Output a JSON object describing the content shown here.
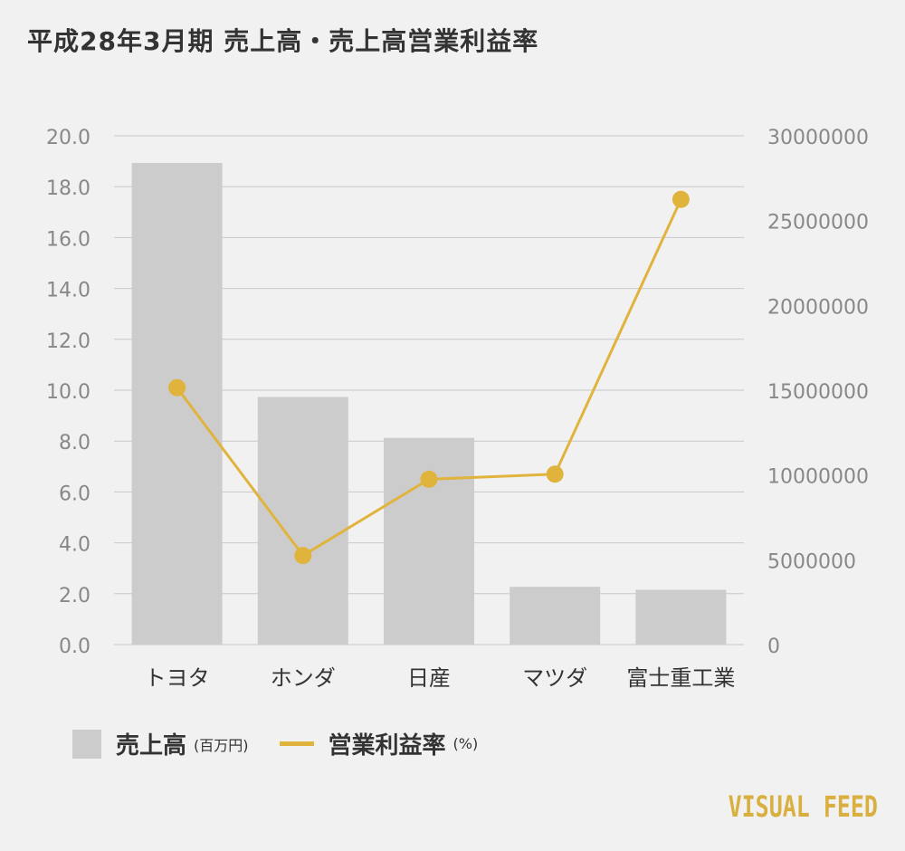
{
  "title": "平成28年3月期 売上高・売上高営業利益率",
  "chart_data": {
    "type": "bar",
    "categories": [
      "トヨタ",
      "ホンダ",
      "日産",
      "マツダ",
      "富士重工業"
    ],
    "series": [
      {
        "name": "売上高",
        "unit": "(百万円)",
        "type": "bar",
        "axis": "right",
        "values": [
          28403118,
          14601151,
          12189519,
          3406603,
          3232258
        ],
        "color": "#cccccc"
      },
      {
        "name": "営業利益率",
        "unit": "(%)",
        "type": "line",
        "axis": "left",
        "values": [
          10.1,
          3.5,
          6.5,
          6.7,
          17.5
        ],
        "color": "#e0b43c"
      }
    ],
    "y_left": {
      "min": 0,
      "max": 20,
      "ticks": [
        "0.0",
        "2.0",
        "4.0",
        "6.0",
        "8.0",
        "10.0",
        "12.0",
        "14.0",
        "16.0",
        "18.0",
        "20.0"
      ]
    },
    "y_right": {
      "min": 0,
      "max": 30000000,
      "ticks": [
        "0",
        "5000000",
        "10000000",
        "15000000",
        "20000000",
        "25000000",
        "30000000"
      ]
    },
    "grid": true,
    "legend_position": "bottom-left"
  },
  "legend": {
    "bar_label": "売上高",
    "bar_unit": "(百万円)",
    "line_label": "営業利益率",
    "line_unit": "(%)"
  },
  "brand": "VISUAL FEED",
  "colors": {
    "background": "#f1f1f1",
    "bar": "#cccccc",
    "line": "#e0b43c",
    "grid": "#c8c8c8",
    "axis_text": "#888888",
    "title_text": "#333333",
    "brand": "#d9b040"
  }
}
